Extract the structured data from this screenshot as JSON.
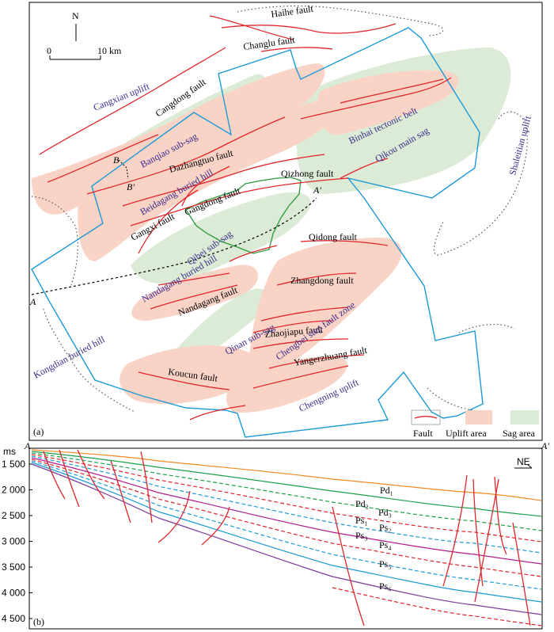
{
  "panel_a": {
    "label": "(a)",
    "north": "N",
    "scale": {
      "start": "0",
      "end": "10 km"
    },
    "faults": [
      "Haihe fault",
      "Changlu fault",
      "Cangdong fault",
      "Dazhangtuo fault",
      "Qizhong fault",
      "Gangdong fault",
      "Gangxi fault",
      "Qidong fault",
      "Zhangdong fault",
      "Nandagang fault",
      "Zhaojiapu fault",
      "Yangerzhuang fault",
      "Koucun fault"
    ],
    "regions": [
      "Cangxian uplift",
      "Banqiao sub-sag",
      "Beidagang buried hill",
      "Binhai tectonic belt",
      "Qikou main sag",
      "Shaleitian uplift",
      "Qibei sub-sag",
      "Nandagang buried hill",
      "Qinan sub-sag",
      "Chengbei step fault zone",
      "Kongdian buried hill",
      "Chengning uplift"
    ],
    "section_points": {
      "a": "A",
      "a_prime": "A'",
      "b": "B",
      "b_prime": "B'"
    },
    "legend": {
      "fault": "Fault",
      "uplift": "Uplift area",
      "sag": "Sag area"
    },
    "colors": {
      "uplift": "#f9d3c6",
      "sag": "#dcebd6",
      "fault": "#e0262a",
      "survey": "#1b9ad6",
      "study": "#2a9a3a"
    }
  },
  "panel_b": {
    "label": "(b)",
    "unit": "ms",
    "end_a": "A",
    "end_a_prime": "A'",
    "direction": "NE",
    "yticks": [
      "1 500",
      "2 000",
      "2 500",
      "3 000",
      "3 500",
      "4 000",
      "4 500"
    ],
    "horizons": [
      "Pd₁",
      "Pd₂",
      "Pd₃",
      "Ps₁",
      "Ps₂",
      "Ps₃",
      "Ps₄",
      "Ps₅",
      "Ps₆"
    ]
  }
}
